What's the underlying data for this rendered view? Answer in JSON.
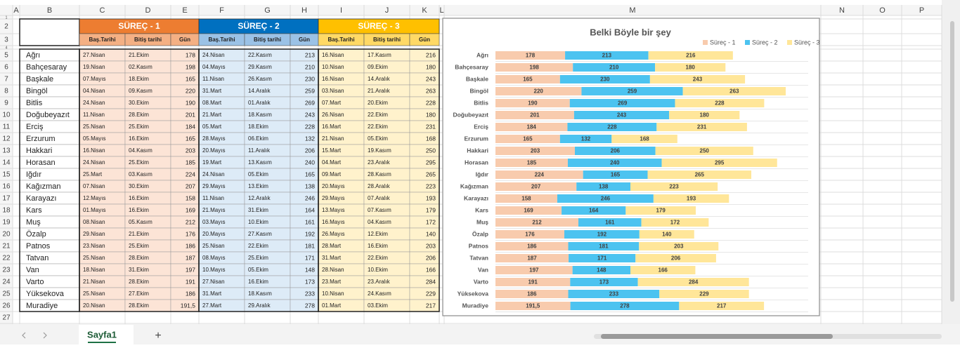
{
  "columns": [
    "A",
    "B",
    "C",
    "D",
    "E",
    "F",
    "G",
    "H",
    "I",
    "J",
    "K",
    "L",
    "M",
    "N",
    "O",
    "P"
  ],
  "rows": [
    1,
    2,
    3,
    4,
    5,
    6,
    7,
    8,
    9,
    10,
    11,
    12,
    13,
    14,
    15,
    16,
    17,
    18,
    19,
    20,
    21,
    22,
    23,
    24,
    25,
    26,
    27
  ],
  "table": {
    "groups": [
      {
        "title": "SÜREÇ - 1",
        "subheaders": [
          "Baş.Tarihi",
          "Bitiş tarihi",
          "Gün"
        ]
      },
      {
        "title": "SÜREÇ - 2",
        "subheaders": [
          "Baş.Tarihi",
          "Bitiş tarihi",
          "Gün"
        ]
      },
      {
        "title": "SÜREÇ - 3",
        "subheaders": [
          "Baş.Tarihi",
          "Bitiş tarihi",
          "Gün"
        ]
      }
    ],
    "body": [
      [
        "Ağrı",
        "27.Nisan",
        "21.Ekim",
        "178",
        "24.Nisan",
        "22.Kasım",
        "213",
        "16.Nisan",
        "17.Kasım",
        "216"
      ],
      [
        "Bahçesaray",
        "19.Nisan",
        "02.Kasım",
        "198",
        "04.Mayıs",
        "29.Kasım",
        "210",
        "10.Nisan",
        "09.Ekim",
        "180"
      ],
      [
        "Başkale",
        "07.Mayıs",
        "18.Ekim",
        "165",
        "11.Nisan",
        "26.Kasım",
        "230",
        "16.Nisan",
        "14.Aralık",
        "243"
      ],
      [
        "Bingöl",
        "04.Nisan",
        "09.Kasım",
        "220",
        "31.Mart",
        "14.Aralık",
        "259",
        "03.Nisan",
        "21.Aralık",
        "263"
      ],
      [
        "Bitlis",
        "24.Nisan",
        "30.Ekim",
        "190",
        "08.Mart",
        "01.Aralık",
        "269",
        "07.Mart",
        "20.Ekim",
        "228"
      ],
      [
        "Doğubeyazıt",
        "11.Nisan",
        "28.Ekim",
        "201",
        "21.Mart",
        "18.Kasım",
        "243",
        "26.Nisan",
        "22.Ekim",
        "180"
      ],
      [
        "Erciş",
        "25.Nisan",
        "25.Ekim",
        "184",
        "05.Mart",
        "18.Ekim",
        "228",
        "16.Mart",
        "22.Ekim",
        "231"
      ],
      [
        "Erzurum",
        "05.Mayıs",
        "16.Ekim",
        "165",
        "28.Mayıs",
        "06.Ekim",
        "132",
        "21.Nisan",
        "05.Ekim",
        "168"
      ],
      [
        "Hakkari",
        "16.Nisan",
        "04.Kasım",
        "203",
        "20.Mayıs",
        "11.Aralık",
        "206",
        "15.Mart",
        "19.Kasım",
        "250"
      ],
      [
        "Horasan",
        "24.Nisan",
        "25.Ekim",
        "185",
        "19.Mart",
        "13.Kasım",
        "240",
        "04.Mart",
        "23.Aralık",
        "295"
      ],
      [
        "Iğdır",
        "25.Mart",
        "03.Kasım",
        "224",
        "24.Nisan",
        "05.Ekim",
        "165",
        "09.Mart",
        "28.Kasım",
        "265"
      ],
      [
        "Kağızman",
        "07.Nisan",
        "30.Ekim",
        "207",
        "29.Mayıs",
        "13.Ekim",
        "138",
        "20.Mayıs",
        "28.Aralık",
        "223"
      ],
      [
        "Karayazı",
        "12.Mayıs",
        "16.Ekim",
        "158",
        "11.Nisan",
        "12.Aralık",
        "246",
        "29.Mayıs",
        "07.Aralık",
        "193"
      ],
      [
        "Kars",
        "01.Mayıs",
        "16.Ekim",
        "169",
        "21.Mayıs",
        "31.Ekim",
        "164",
        "13.Mayıs",
        "07.Kasım",
        "179"
      ],
      [
        "Muş",
        "08.Nisan",
        "05.Kasım",
        "212",
        "03.Mayıs",
        "10.Ekim",
        "161",
        "16.Mayıs",
        "04.Kasım",
        "172"
      ],
      [
        "Özalp",
        "29.Nisan",
        "21.Ekim",
        "176",
        "20.Mayıs",
        "27.Kasım",
        "192",
        "26.Mayıs",
        "12.Ekim",
        "140"
      ],
      [
        "Patnos",
        "23.Nisan",
        "25.Ekim",
        "186",
        "25.Nisan",
        "22.Ekim",
        "181",
        "28.Mart",
        "16.Ekim",
        "203"
      ],
      [
        "Tatvan",
        "25.Nisan",
        "28.Ekim",
        "187",
        "08.Mayıs",
        "25.Ekim",
        "171",
        "31.Mart",
        "22.Ekim",
        "206"
      ],
      [
        "Van",
        "18.Nisan",
        "31.Ekim",
        "197",
        "10.Mayıs",
        "05.Ekim",
        "148",
        "28.Nisan",
        "10.Ekim",
        "166"
      ],
      [
        "Varto",
        "21.Nisan",
        "28.Ekim",
        "191",
        "27.Nisan",
        "16.Ekim",
        "173",
        "23.Mart",
        "23.Aralık",
        "284"
      ],
      [
        "Yüksekova",
        "25.Nisan",
        "27.Ekim",
        "186",
        "31.Mart",
        "18.Kasım",
        "233",
        "10.Nisan",
        "24.Kasım",
        "229"
      ],
      [
        "Muradiye",
        "20.Nisan",
        "28.Ekim",
        "191,5",
        "27.Mart",
        "29.Aralık",
        "278",
        "01.Mart",
        "03.Ekim",
        "217"
      ]
    ]
  },
  "chart_data": {
    "type": "bar",
    "orientation": "horizontal",
    "stacked": true,
    "title": "Belki Böyle bir şey",
    "legend": "top-right",
    "categories": [
      "Ağrı",
      "Bahçesaray",
      "Başkale",
      "Bingöl",
      "Bitlis",
      "Doğubeyazıt",
      "Erciş",
      "Erzurum",
      "Hakkari",
      "Horasan",
      "Iğdır",
      "Kağızman",
      "Karayazı",
      "Kars",
      "Muş",
      "Özalp",
      "Patnos",
      "Tatvan",
      "Van",
      "Varto",
      "Yüksekova",
      "Muradiye"
    ],
    "series": [
      {
        "name": "Süreç - 1",
        "color": "#f8cbad",
        "values": [
          178,
          198,
          165,
          220,
          190,
          201,
          184,
          165,
          203,
          185,
          224,
          207,
          158,
          169,
          212,
          176,
          186,
          187,
          197,
          191,
          186,
          191.5
        ],
        "value_labels": [
          "178",
          "198",
          "165",
          "220",
          "190",
          "201",
          "184",
          "165",
          "203",
          "185",
          "224",
          "207",
          "158",
          "169",
          "212",
          "176",
          "186",
          "187",
          "197",
          "191",
          "186",
          "191,5"
        ]
      },
      {
        "name": "Süreç - 2",
        "color": "#4cc3f0",
        "values": [
          213,
          210,
          230,
          259,
          269,
          243,
          228,
          132,
          206,
          240,
          165,
          138,
          246,
          164,
          161,
          192,
          181,
          171,
          148,
          173,
          233,
          278
        ]
      },
      {
        "name": "Süreç - 3",
        "color": "#ffe699",
        "values": [
          216,
          180,
          243,
          263,
          228,
          180,
          231,
          168,
          250,
          295,
          265,
          223,
          193,
          179,
          172,
          140,
          203,
          206,
          166,
          284,
          229,
          217
        ]
      }
    ]
  },
  "sheet_tab": "Sayfa1",
  "add_sheet": "+"
}
